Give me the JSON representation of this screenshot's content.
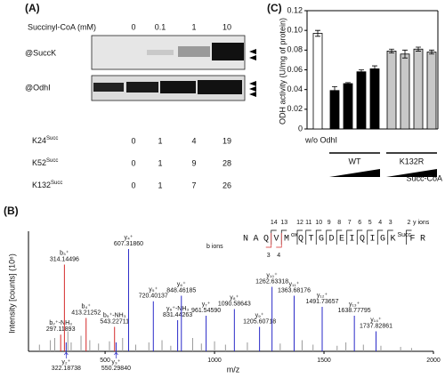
{
  "panel_a": {
    "panel_label": "(A)",
    "condition_label": "Succinyl-CoA (mM)",
    "concentrations": [
      0,
      0.1,
      1,
      10
    ],
    "antibodies": [
      "@SuccK",
      "@OdhI"
    ],
    "sites": [
      {
        "name": "K24",
        "mod": "Succ",
        "values": [
          0,
          1,
          4,
          19
        ]
      },
      {
        "name": "K52",
        "mod": "Succ",
        "values": [
          0,
          1,
          9,
          28
        ]
      },
      {
        "name": "K132",
        "mod": "Succ",
        "values": [
          0,
          1,
          7,
          26
        ]
      }
    ]
  },
  "panel_b": {
    "panel_label": "(B)",
    "sequence": {
      "residues": [
        "N",
        "A",
        "Q",
        "V",
        "M",
        "Q",
        "T",
        "G",
        "D",
        "E",
        "I",
        "Q",
        "I",
        "G",
        "K",
        "F",
        "R"
      ],
      "mods": [
        null,
        null,
        null,
        null,
        "ox",
        null,
        null,
        null,
        null,
        null,
        null,
        null,
        null,
        null,
        "Succ",
        null,
        null
      ],
      "y_ions": [
        14,
        13,
        12,
        11,
        10,
        9,
        8,
        7,
        6,
        5,
        4,
        3,
        2
      ],
      "y_ions_label": "y ions",
      "b_ions": [
        3,
        4
      ],
      "b_ions_label": "b ions"
    }
  },
  "panel_c": {
    "panel_label": "(C)"
  },
  "chart_data": [
    {
      "type": "bar",
      "ylabel": "ODH activity (U/mg of protein)",
      "categories": [
        "w/o OdhI",
        null,
        null,
        null,
        null,
        null,
        null,
        null,
        null
      ],
      "values": [
        0.097,
        0.039,
        0.046,
        0.058,
        0.061,
        0.079,
        0.076,
        0.081,
        0.078
      ],
      "errors": [
        0.003,
        0.004,
        0.001,
        0.002,
        0.003,
        0.002,
        0.004,
        0.002,
        0.002
      ],
      "colors": [
        "#ffffff",
        "#000000",
        "#000000",
        "#000000",
        "#000000",
        "#c8c8c8",
        "#c8c8c8",
        "#c8c8c8",
        "#c8c8c8"
      ],
      "ylim": [
        0,
        0.12
      ],
      "yticks": [
        0,
        0.02,
        0.04,
        0.06,
        0.08,
        {
          "value": 0.1,
          "label": "0.10"
        },
        0.12
      ],
      "groups": [
        "WT",
        "K132R"
      ],
      "gradient_label": "Succ-CoA"
    },
    {
      "type": "spectrum",
      "xlabel": "m/z",
      "ylabel": "Intensity [counts] (10⁶)",
      "xlim": [
        150,
        2000
      ],
      "xticks": [
        500,
        1000,
        1500,
        2000
      ],
      "ylim": [
        0,
        100
      ],
      "series": [
        {
          "color": "#d42a2a",
          "x": [
            297.11893,
            314.14496,
            413.21252,
            543.22711
          ],
          "values": [
            15,
            78,
            30,
            22
          ],
          "labels": [
            "b₂⁺-NH₃",
            "b₃⁺",
            "b₄⁺",
            "b₅⁺-NH₃"
          ],
          "x_labels": [
            "297.11893",
            "314.14496",
            "413.21252",
            "543.22711"
          ]
        },
        {
          "color": "#2a2ac8",
          "x": [
            322.18738,
            550.2984,
            607.3186,
            720.40137,
            831.44263,
            848.46185,
            961.5459,
            1090.58643,
            1205.60718,
            1262.63318,
            1363.68176,
            1491.73657,
            1638.77795,
            1737.82861
          ],
          "values": [
            8,
            8,
            92,
            45,
            28,
            50,
            32,
            38,
            22,
            58,
            50,
            40,
            32,
            18
          ],
          "labels": [
            "y₂⁺",
            "y₃⁺",
            "y₄⁺",
            "y₅⁺",
            "y₆⁺-NH₃",
            "y₆⁺",
            "y₇⁺",
            "y₈⁺",
            "y₉⁺",
            "y₁₀⁺",
            "y₁₁⁺",
            "y₁₂⁺",
            "y₁₃⁺",
            "y₁₄⁺"
          ],
          "x_labels": [
            "322.18738",
            "550.29840",
            "607.31860",
            "720.40137",
            "831.44263",
            "848.46185",
            "961.54590",
            "1090.58643",
            "1205.60718",
            "1262.63318",
            "1363.68176",
            "1491.73657",
            "1638.77795",
            "1737.82861"
          ]
        },
        {
          "color": "#9a9a9a",
          "x": [
            200,
            250,
            270,
            330,
            345,
            390,
            430,
            470,
            520,
            580,
            640,
            700,
            760,
            800,
            900,
            940,
            1000,
            1050,
            1150,
            1300,
            1400,
            1450,
            1560,
            1600,
            1680,
            1760,
            1850,
            1900
          ],
          "values": [
            6,
            10,
            12,
            18,
            8,
            14,
            10,
            7,
            9,
            12,
            6,
            8,
            10,
            5,
            12,
            7,
            9,
            6,
            8,
            7,
            10,
            6,
            5,
            8,
            6,
            5,
            4,
            3
          ]
        }
      ]
    }
  ]
}
